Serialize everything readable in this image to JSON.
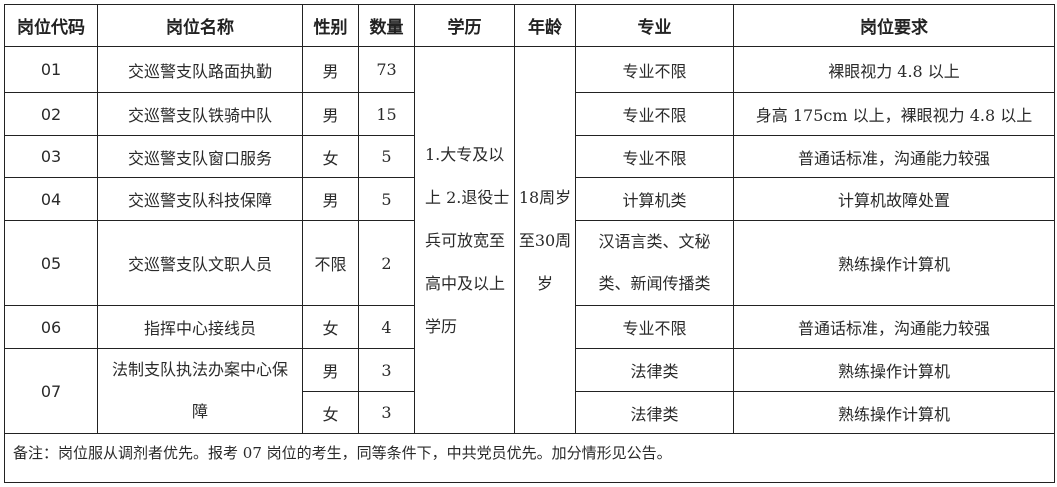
{
  "headers": [
    "岗位代码",
    "岗位名称",
    "性别",
    "数量",
    "学历",
    "年龄",
    "专业",
    "岗位要求"
  ],
  "rows": [
    {
      "code": "01",
      "name": "交巡警支队路面执勤",
      "gender": "男",
      "count": "73",
      "major": "专业不限",
      "requirement": "裸眼视力 4.8 以上"
    },
    {
      "code": "02",
      "name": "交巡警支队铁骑中队",
      "gender": "男",
      "count": "15",
      "major": "专业不限",
      "requirement": "身高 175cm 以上，裸眼视力 4.8 以上"
    },
    {
      "code": "03",
      "name": "交巡警支队窗口服务",
      "gender": "女",
      "count": "5",
      "major": "专业不限",
      "requirement": "普通话标准，沟通能力较强"
    },
    {
      "code": "04",
      "name": "交巡警支队科技保障",
      "gender": "男",
      "count": "5",
      "major": "计算机类",
      "requirement": "计算机故障处置"
    },
    {
      "code": "05",
      "name": "交巡警支队文职人员",
      "gender": "不限",
      "count": "2",
      "major": "汉语言类、文秘类、新闻传播类",
      "requirement": "熟练操作计算机"
    },
    {
      "code": "06",
      "name": "指挥中心接线员",
      "gender": "女",
      "count": "4",
      "major": "专业不限",
      "requirement": "普通话标准，沟通能力较强"
    },
    {
      "code": "07",
      "name": "法制支队执法办案中心保障",
      "gender": "男",
      "count": "3",
      "major": "法律类",
      "requirement": "熟练操作计算机"
    },
    {
      "gender": "女",
      "count": "3",
      "major": "法律类",
      "requirement": "熟练操作计算机"
    }
  ],
  "education": "1.大专及以上 2.退役士兵可放宽至高中及以上学历",
  "age": "18周岁至30周岁",
  "note": "备注：岗位服从调剂者优先。报考 07 岗位的考生，同等条件下，中共党员优先。加分情形见公告。"
}
